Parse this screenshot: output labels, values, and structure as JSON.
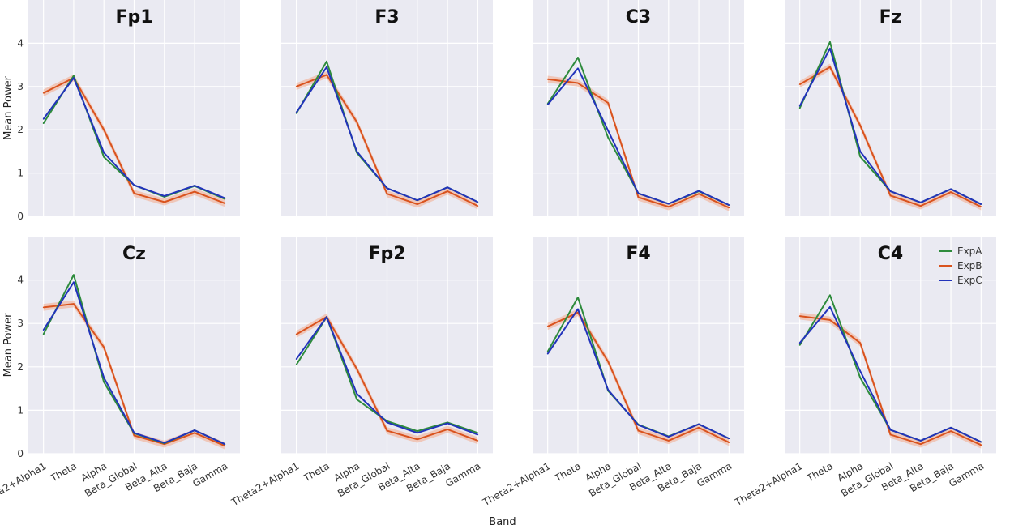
{
  "figure": {
    "xlabel": "Band",
    "ylabel": "Mean Power"
  },
  "chart_data": {
    "type": "line",
    "categories": [
      "Theta2+Alpha1",
      "Theta",
      "Alpha",
      "Beta_Global",
      "Beta_Alta",
      "Beta_Baja",
      "Gamma"
    ],
    "ylim": [
      0,
      5
    ],
    "yticks": [
      0,
      1,
      2,
      3,
      4
    ],
    "grid": true,
    "legend": {
      "placement": "top-right",
      "entries": [
        "ExpA",
        "ExpB",
        "ExpC"
      ]
    },
    "colors": {
      "ExpA": "#2e8b3d",
      "ExpB": "#d9531e",
      "ExpC": "#2233bb",
      "band": "#f2a98c",
      "panel_bg": "#eaeaf2",
      "grid": "#ffffff"
    },
    "panels": [
      {
        "title": "Fp1",
        "series": [
          {
            "name": "ExpA",
            "values": [
              2.15,
              3.25,
              1.37,
              0.72,
              0.45,
              0.7,
              0.4
            ]
          },
          {
            "name": "ExpB",
            "values": [
              2.85,
              3.2,
              2.0,
              0.53,
              0.33,
              0.57,
              0.3
            ]
          },
          {
            "name": "ExpC",
            "values": [
              2.25,
              3.2,
              1.47,
              0.72,
              0.47,
              0.71,
              0.42
            ]
          }
        ]
      },
      {
        "title": "F3",
        "series": [
          {
            "name": "ExpA",
            "values": [
              2.38,
              3.58,
              1.47,
              0.65,
              0.37,
              0.67,
              0.33
            ]
          },
          {
            "name": "ExpB",
            "values": [
              3.0,
              3.27,
              2.18,
              0.52,
              0.28,
              0.58,
              0.24
            ]
          },
          {
            "name": "ExpC",
            "values": [
              2.4,
              3.45,
              1.5,
              0.65,
              0.37,
              0.67,
              0.33
            ]
          }
        ]
      },
      {
        "title": "C3",
        "series": [
          {
            "name": "ExpA",
            "values": [
              2.6,
              3.67,
              1.82,
              0.53,
              0.29,
              0.58,
              0.26
            ]
          },
          {
            "name": "ExpB",
            "values": [
              3.17,
              3.08,
              2.62,
              0.44,
              0.22,
              0.52,
              0.2
            ]
          },
          {
            "name": "ExpC",
            "values": [
              2.58,
              3.42,
              1.98,
              0.53,
              0.29,
              0.59,
              0.26
            ]
          }
        ]
      },
      {
        "title": "Fz",
        "series": [
          {
            "name": "ExpA",
            "values": [
              2.5,
              4.03,
              1.38,
              0.58,
              0.32,
              0.63,
              0.28
            ]
          },
          {
            "name": "ExpB",
            "values": [
              3.05,
              3.45,
              2.1,
              0.48,
              0.24,
              0.56,
              0.22
            ]
          },
          {
            "name": "ExpC",
            "values": [
              2.55,
              3.88,
              1.5,
              0.58,
              0.32,
              0.63,
              0.28
            ]
          }
        ]
      },
      {
        "title": "Cz",
        "series": [
          {
            "name": "ExpA",
            "values": [
              2.75,
              4.12,
              1.65,
              0.47,
              0.24,
              0.54,
              0.22
            ]
          },
          {
            "name": "ExpB",
            "values": [
              3.37,
              3.45,
              2.45,
              0.42,
              0.22,
              0.48,
              0.18
            ]
          },
          {
            "name": "ExpC",
            "values": [
              2.85,
              3.95,
              1.75,
              0.48,
              0.25,
              0.54,
              0.22
            ]
          }
        ]
      },
      {
        "title": "Fp2",
        "series": [
          {
            "name": "ExpA",
            "values": [
              2.05,
              3.15,
              1.25,
              0.75,
              0.52,
              0.72,
              0.48
            ]
          },
          {
            "name": "ExpB",
            "values": [
              2.75,
              3.15,
              1.95,
              0.53,
              0.33,
              0.56,
              0.3
            ]
          },
          {
            "name": "ExpC",
            "values": [
              2.18,
              3.15,
              1.38,
              0.72,
              0.48,
              0.7,
              0.44
            ]
          }
        ]
      },
      {
        "title": "F4",
        "series": [
          {
            "name": "ExpA",
            "values": [
              2.35,
              3.6,
              1.45,
              0.67,
              0.4,
              0.68,
              0.35
            ]
          },
          {
            "name": "ExpB",
            "values": [
              2.93,
              3.25,
              2.12,
              0.53,
              0.3,
              0.6,
              0.26
            ]
          },
          {
            "name": "ExpC",
            "values": [
              2.3,
              3.33,
              1.47,
              0.66,
              0.39,
              0.68,
              0.35
            ]
          }
        ]
      },
      {
        "title": "C4",
        "series": [
          {
            "name": "ExpA",
            "values": [
              2.5,
              3.65,
              1.75,
              0.55,
              0.3,
              0.6,
              0.27
            ]
          },
          {
            "name": "ExpB",
            "values": [
              3.17,
              3.08,
              2.55,
              0.44,
              0.22,
              0.52,
              0.2
            ]
          },
          {
            "name": "ExpC",
            "values": [
              2.55,
              3.38,
              1.9,
              0.55,
              0.3,
              0.6,
              0.27
            ]
          }
        ]
      }
    ]
  }
}
